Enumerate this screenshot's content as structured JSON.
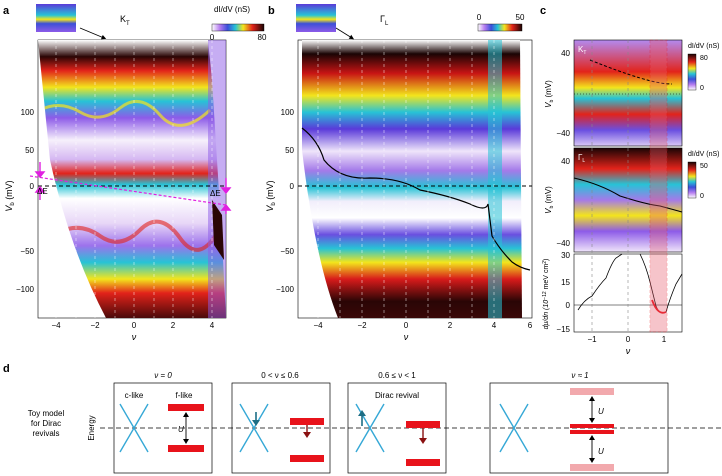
{
  "panels": {
    "a": {
      "letter": "a",
      "band": "K",
      "band_sub": "T",
      "cbar_label": "dI/dV (nS)",
      "cbar_min": "0",
      "cbar_max": "80",
      "ylabel_v": "V",
      "ylabel_b": "b",
      "ylabel_unit": " (mV)",
      "xlabel": "ν",
      "yticks": [
        "100",
        "50",
        "0",
        "−50",
        "−100"
      ],
      "xticks": [
        "−4",
        "−2",
        "0",
        "2",
        "4"
      ],
      "annot_left": "ΔE",
      "annot_right": "ΔE"
    },
    "b": {
      "letter": "b",
      "band": "Γ",
      "band_sub": "L",
      "cbar_min": "0",
      "cbar_max": "50",
      "ylabel_v": "V",
      "ylabel_b": "b",
      "ylabel_unit": " (mV)",
      "xlabel": "ν",
      "yticks": [
        "100",
        "50",
        "0",
        "−50",
        "−100"
      ],
      "xticks": [
        "−4",
        "−2",
        "0",
        "2",
        "4",
        "6"
      ]
    },
    "c": {
      "letter": "c",
      "top_band": "K",
      "top_band_sub": "T",
      "mid_band": "Γ",
      "mid_band_sub": "L",
      "cbar1_label": "dI/dV (nS)",
      "cbar1_max": "80",
      "cbar1_min": "0",
      "cbar2_label": "dI/dV (nS)",
      "cbar2_max": "50",
      "cbar2_min": "0",
      "ylabel_v": "V",
      "ylabel_b": "b",
      "ylabel_unit": " (mV)",
      "top_yticks": [
        "40",
        "−40"
      ],
      "mid_yticks": [
        "40",
        "−40"
      ],
      "bottom_ylabel": "dμ/dn (10",
      "bottom_ylabel_exp": "−12",
      "bottom_ylabel_end": " meV cm",
      "bottom_ylabel_exp2": "2",
      "bottom_ylabel_close": ")",
      "bottom_yticks": [
        "30",
        "15",
        "0",
        "−15"
      ],
      "xticks": [
        "−1",
        "0",
        "1"
      ],
      "xlabel": "ν"
    },
    "d": {
      "letter": "d",
      "side_label": [
        "Toy model",
        "for Dirac",
        "revivals"
      ],
      "energy_label": "Energy",
      "boxes": [
        {
          "title": "ν = 0",
          "left_label": "c-like",
          "right_label": "f-like",
          "u_label": "U"
        },
        {
          "title": "0 < ν ≤ 0.6"
        },
        {
          "title": "0.6 ≤ ν < 1",
          "inner_label": "Dirac revival"
        },
        {
          "title": "ν ≈ 1",
          "u_label_top": "U",
          "u_label_bottom": "U"
        }
      ]
    }
  },
  "colors": {
    "dirac": "#35a8d6",
    "flat": "#e8131b",
    "flat_faint": "#f2a9ad",
    "arrow_dark": "#1d6e85",
    "magenta": "#e020e0",
    "highlight": "#e85a6a"
  }
}
